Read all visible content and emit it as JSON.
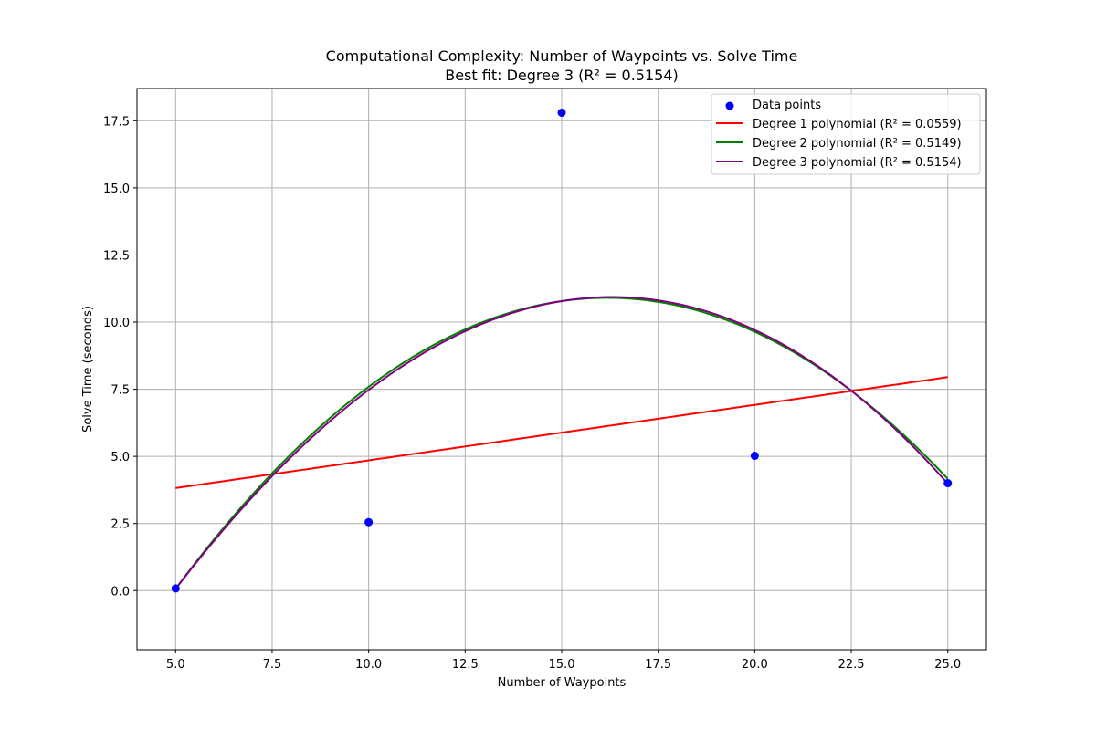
{
  "chart_data": {
    "type": "scatter",
    "title": "Computational Complexity: Number of Waypoints vs. Solve Time",
    "subtitle": "Best fit: Degree 3 (R² = 0.5154)",
    "xlabel": "Number of Waypoints",
    "ylabel": "Solve Time (seconds)",
    "xlim": [
      4.0,
      26.0
    ],
    "ylim": [
      -2.2,
      18.7
    ],
    "xticks": [
      5.0,
      7.5,
      10.0,
      12.5,
      15.0,
      17.5,
      20.0,
      22.5,
      25.0
    ],
    "xtick_labels": [
      "5.0",
      "7.5",
      "10.0",
      "12.5",
      "15.0",
      "17.5",
      "20.0",
      "22.5",
      "25.0"
    ],
    "yticks": [
      0.0,
      2.5,
      5.0,
      7.5,
      10.0,
      12.5,
      15.0,
      17.5
    ],
    "ytick_labels": [
      "0.0",
      "2.5",
      "5.0",
      "7.5",
      "10.0",
      "12.5",
      "15.0",
      "17.5"
    ],
    "grid": true,
    "legend_position": "top-right",
    "points": {
      "name": "Data points",
      "color": "#0000ff",
      "x": [
        5,
        10,
        15,
        20,
        25
      ],
      "y": [
        0.08,
        2.55,
        17.8,
        5.02,
        4.0
      ]
    },
    "fits": [
      {
        "name": "Degree 1 polynomial (R² = 0.0559)",
        "color": "#ff0000",
        "degree": 1,
        "coefficients": [
          2.786,
          0.2066
        ]
      },
      {
        "name": "Degree 2 polynomial (R² = 0.5149)",
        "color": "#008000",
        "degree": 2,
        "coefficients": [
          -11.8,
          2.806,
          -0.0867
        ]
      },
      {
        "name": "Degree 3 polynomial (R² = 0.5154)",
        "color": "#800080",
        "degree": 3,
        "coefficients": [
          -11.18,
          2.614,
          -0.0712,
          -0.000364
        ]
      }
    ],
    "fit_x_range": [
      5,
      25
    ]
  }
}
